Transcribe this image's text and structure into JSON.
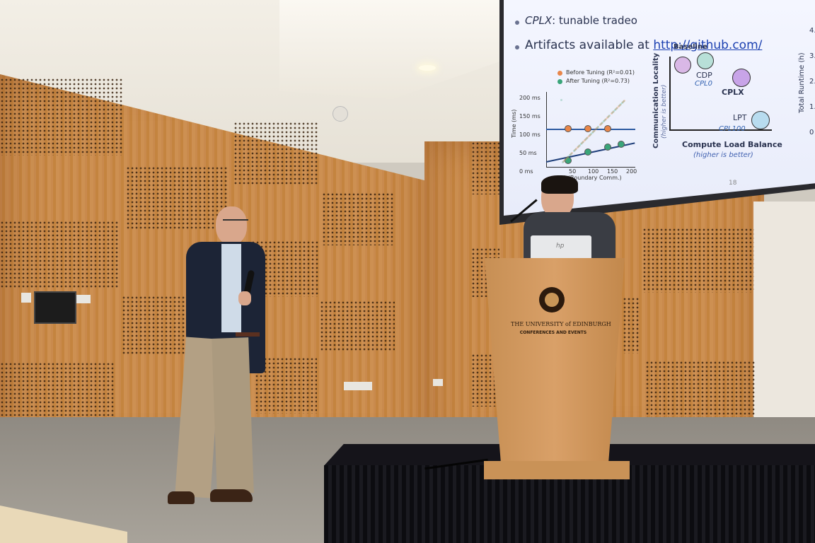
{
  "slide": {
    "bullet_cplx_label": "CPLX",
    "bullet_cplx_text": ": tunable tradeo",
    "bullet_artifacts_text": "Artifacts available at ",
    "bullet_artifacts_link": "http://github.com/",
    "page_number": "18"
  },
  "scatter_plot": {
    "legend_before": "Before Tuning (R²=0.01)",
    "legend_after": "After Tuning (R²=0.73)",
    "ylabel": "Time (ms)",
    "y_ticks": [
      "200 ms",
      "150 ms",
      "100 ms",
      "50 ms",
      "0 ms"
    ],
    "x_ticks": [
      "50",
      "100",
      "150",
      "200"
    ],
    "xlabel": "nt (Boundary Comm.)",
    "colors": {
      "before": "#e8864a",
      "after": "#3aa57a"
    }
  },
  "tradeoff_diagram": {
    "ylabel": "Communication Locality",
    "ylabel_note": "(higher is better)",
    "xlabel": "Compute Load Balance",
    "xlabel_note": "(higher is better)",
    "labels": {
      "baseline": "Baseline",
      "cdp": "CDP",
      "cpl0": "CPL0",
      "cplx": "CPLX",
      "lpt": "LPT",
      "cpl100": "CPL100"
    },
    "right_ylabel": "Total Runtime (h)",
    "right_ticks": [
      "4.",
      "3.",
      "2.",
      "1.",
      "0"
    ]
  },
  "podium": {
    "line1": "THE UNIVERSITY of EDINBURGH",
    "line2": "CONFERENCES AND EVENTS"
  },
  "laptop_logo": "hp"
}
